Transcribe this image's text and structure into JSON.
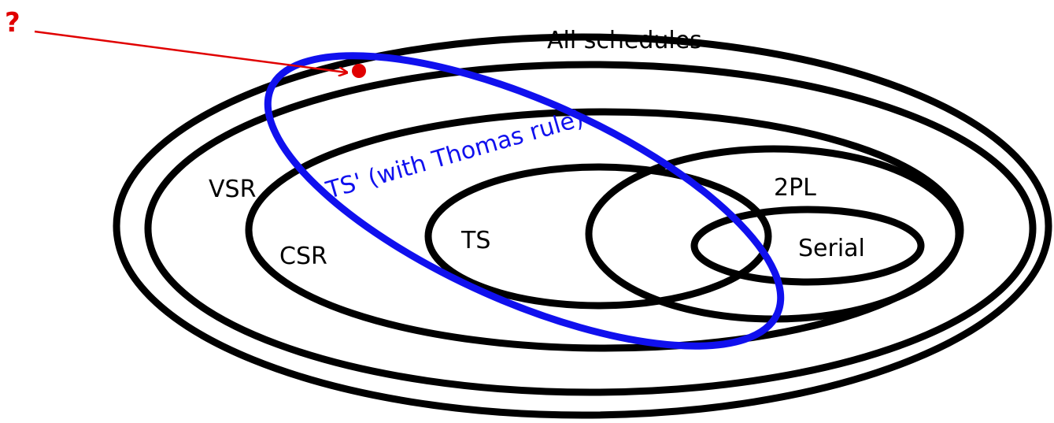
{
  "labels": {
    "all_schedules": "All schedules",
    "vsr": "VSR",
    "csr": "CSR",
    "ts": "TS",
    "two_pl": "2PL",
    "serial": "Serial",
    "ts_prime": "TS' (with Thomas rule)",
    "question": "?"
  },
  "colors": {
    "outline": "#000000",
    "ts_prime": "#1010ee",
    "question": "#e00000"
  }
}
